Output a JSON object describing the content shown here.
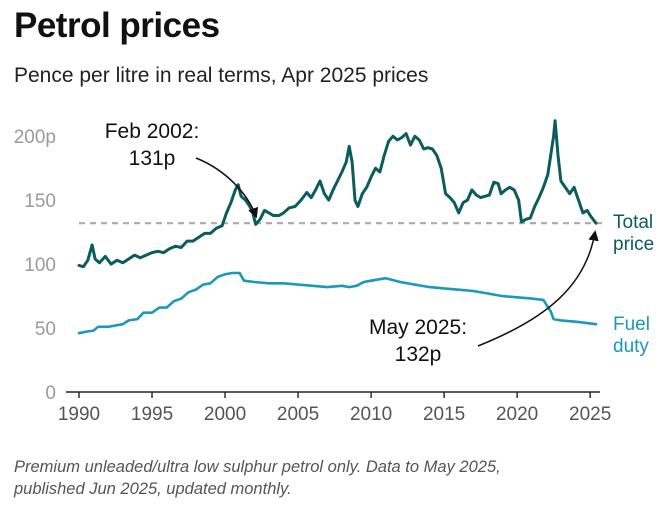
{
  "title": "Petrol prices",
  "subtitle": "Pence per litre in real terms, Apr 2025 prices",
  "footnote": {
    "line1": "Premium unleaded/ultra low sulphur petrol only. Data to May 2025,",
    "line2": "published Jun 2025, updated monthly."
  },
  "chart_data": {
    "type": "line",
    "x_range": [
      1990,
      2025.4
    ],
    "ylim": [
      0,
      215
    ],
    "y_ticks": [
      {
        "value": 0,
        "label": "0"
      },
      {
        "value": 50,
        "label": "50"
      },
      {
        "value": 100,
        "label": "100"
      },
      {
        "value": 150,
        "label": "150"
      },
      {
        "value": 200,
        "label": "200p"
      }
    ],
    "x_ticks": [
      {
        "value": 1990,
        "label": "1990"
      },
      {
        "value": 1995,
        "label": "1995"
      },
      {
        "value": 2000,
        "label": "2000"
      },
      {
        "value": 2005,
        "label": "2005"
      },
      {
        "value": 2010,
        "label": "2010"
      },
      {
        "value": 2015,
        "label": "2015"
      },
      {
        "value": 2020,
        "label": "2020"
      },
      {
        "value": 2025,
        "label": "2025"
      }
    ],
    "reference_line": {
      "value": 132,
      "style": "dashed"
    },
    "series": [
      {
        "name": "Total price",
        "label_lines": [
          "Total",
          "price"
        ],
        "color": "#0b5c5c",
        "points": [
          [
            1990.0,
            99
          ],
          [
            1990.3,
            98
          ],
          [
            1990.6,
            103
          ],
          [
            1990.9,
            115
          ],
          [
            1991.1,
            104
          ],
          [
            1991.4,
            101
          ],
          [
            1991.8,
            106
          ],
          [
            1992.2,
            100
          ],
          [
            1992.6,
            103
          ],
          [
            1993.0,
            101
          ],
          [
            1993.4,
            104
          ],
          [
            1993.8,
            107
          ],
          [
            1994.2,
            105
          ],
          [
            1994.6,
            107
          ],
          [
            1995.0,
            109
          ],
          [
            1995.4,
            110
          ],
          [
            1995.8,
            109
          ],
          [
            1996.2,
            112
          ],
          [
            1996.6,
            114
          ],
          [
            1997.0,
            113
          ],
          [
            1997.4,
            118
          ],
          [
            1997.8,
            118
          ],
          [
            1998.2,
            121
          ],
          [
            1998.6,
            124
          ],
          [
            1999.0,
            124
          ],
          [
            1999.4,
            128
          ],
          [
            1999.8,
            130
          ],
          [
            2000.1,
            140
          ],
          [
            2000.4,
            148
          ],
          [
            2000.7,
            158
          ],
          [
            2000.9,
            162
          ],
          [
            2001.1,
            153
          ],
          [
            2001.4,
            150
          ],
          [
            2001.7,
            145
          ],
          [
            2001.9,
            140
          ],
          [
            2002.1,
            131
          ],
          [
            2002.4,
            135
          ],
          [
            2002.7,
            142
          ],
          [
            2003.0,
            140
          ],
          [
            2003.3,
            138
          ],
          [
            2003.7,
            138
          ],
          [
            2004.0,
            140
          ],
          [
            2004.4,
            144
          ],
          [
            2004.8,
            145
          ],
          [
            2005.2,
            150
          ],
          [
            2005.6,
            156
          ],
          [
            2005.9,
            152
          ],
          [
            2006.2,
            158
          ],
          [
            2006.5,
            165
          ],
          [
            2006.8,
            155
          ],
          [
            2007.1,
            150
          ],
          [
            2007.4,
            158
          ],
          [
            2007.7,
            165
          ],
          [
            2008.0,
            172
          ],
          [
            2008.3,
            180
          ],
          [
            2008.5,
            192
          ],
          [
            2008.7,
            180
          ],
          [
            2008.9,
            150
          ],
          [
            2009.1,
            145
          ],
          [
            2009.4,
            155
          ],
          [
            2009.7,
            160
          ],
          [
            2010.0,
            168
          ],
          [
            2010.3,
            175
          ],
          [
            2010.6,
            172
          ],
          [
            2010.9,
            185
          ],
          [
            2011.2,
            196
          ],
          [
            2011.5,
            200
          ],
          [
            2011.8,
            197
          ],
          [
            2012.1,
            199
          ],
          [
            2012.4,
            202
          ],
          [
            2012.7,
            193
          ],
          [
            2013.0,
            200
          ],
          [
            2013.3,
            197
          ],
          [
            2013.6,
            190
          ],
          [
            2013.9,
            191
          ],
          [
            2014.2,
            190
          ],
          [
            2014.5,
            185
          ],
          [
            2014.8,
            175
          ],
          [
            2015.1,
            155
          ],
          [
            2015.4,
            152
          ],
          [
            2015.7,
            148
          ],
          [
            2016.0,
            140
          ],
          [
            2016.3,
            148
          ],
          [
            2016.6,
            150
          ],
          [
            2016.9,
            158
          ],
          [
            2017.2,
            154
          ],
          [
            2017.5,
            152
          ],
          [
            2017.8,
            153
          ],
          [
            2018.1,
            154
          ],
          [
            2018.4,
            164
          ],
          [
            2018.7,
            163
          ],
          [
            2018.9,
            155
          ],
          [
            2019.2,
            158
          ],
          [
            2019.5,
            160
          ],
          [
            2019.8,
            158
          ],
          [
            2020.1,
            150
          ],
          [
            2020.3,
            133
          ],
          [
            2020.6,
            135
          ],
          [
            2020.9,
            136
          ],
          [
            2021.2,
            145
          ],
          [
            2021.5,
            152
          ],
          [
            2021.8,
            160
          ],
          [
            2022.1,
            170
          ],
          [
            2022.3,
            185
          ],
          [
            2022.5,
            200
          ],
          [
            2022.6,
            212
          ],
          [
            2022.8,
            185
          ],
          [
            2023.0,
            165
          ],
          [
            2023.3,
            160
          ],
          [
            2023.6,
            155
          ],
          [
            2023.9,
            160
          ],
          [
            2024.2,
            150
          ],
          [
            2024.5,
            140
          ],
          [
            2024.8,
            142
          ],
          [
            2025.0,
            138
          ],
          [
            2025.4,
            132
          ]
        ]
      },
      {
        "name": "Fuel duty",
        "label_lines": [
          "Fuel",
          "duty"
        ],
        "color": "#1a99b8",
        "points": [
          [
            1990.0,
            46
          ],
          [
            1990.4,
            47
          ],
          [
            1991.0,
            48
          ],
          [
            1991.3,
            51
          ],
          [
            1992.0,
            51
          ],
          [
            1992.5,
            52
          ],
          [
            1993.0,
            53
          ],
          [
            1993.4,
            56
          ],
          [
            1994.0,
            57
          ],
          [
            1994.4,
            62
          ],
          [
            1995.0,
            62
          ],
          [
            1995.5,
            66
          ],
          [
            1996.0,
            66
          ],
          [
            1996.5,
            71
          ],
          [
            1997.0,
            73
          ],
          [
            1997.5,
            78
          ],
          [
            1998.0,
            80
          ],
          [
            1998.5,
            84
          ],
          [
            1999.0,
            85
          ],
          [
            1999.5,
            90
          ],
          [
            2000.0,
            92
          ],
          [
            2000.5,
            93
          ],
          [
            2001.0,
            93
          ],
          [
            2001.3,
            87
          ],
          [
            2002.0,
            86
          ],
          [
            2003.0,
            85
          ],
          [
            2004.0,
            85
          ],
          [
            2005.0,
            84
          ],
          [
            2006.0,
            83
          ],
          [
            2007.0,
            82
          ],
          [
            2008.0,
            83
          ],
          [
            2008.5,
            82
          ],
          [
            2009.0,
            83
          ],
          [
            2009.5,
            86
          ],
          [
            2010.0,
            87
          ],
          [
            2011.0,
            89
          ],
          [
            2012.0,
            86
          ],
          [
            2013.0,
            84
          ],
          [
            2014.0,
            82
          ],
          [
            2015.0,
            81
          ],
          [
            2016.0,
            80
          ],
          [
            2017.0,
            79
          ],
          [
            2018.0,
            77
          ],
          [
            2019.0,
            75
          ],
          [
            2020.0,
            74
          ],
          [
            2021.0,
            73
          ],
          [
            2021.8,
            72
          ],
          [
            2022.3,
            63
          ],
          [
            2022.5,
            57
          ],
          [
            2023.0,
            56
          ],
          [
            2024.0,
            55
          ],
          [
            2025.4,
            53
          ]
        ]
      }
    ],
    "annotations": [
      {
        "lines": [
          "Feb 2002:",
          "131p"
        ],
        "x": 2002.1,
        "y": 131
      },
      {
        "lines": [
          "May 2025:",
          "132p"
        ],
        "x": 2025.4,
        "y": 132
      }
    ]
  }
}
